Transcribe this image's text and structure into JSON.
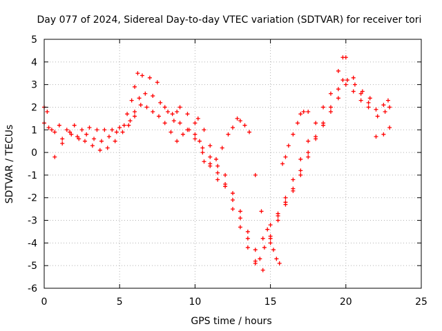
{
  "chart_data": {
    "type": "scatter",
    "title": "Day 077 of 2024, Sidereal Day-to-day VTEC variation (SDTVAR) for receiver tori",
    "xlabel": "GPS time / hours",
    "ylabel": "SDTVAR / TECUs",
    "xlim": [
      0,
      25
    ],
    "ylim": [
      -6,
      5
    ],
    "xticks": [
      0,
      5,
      10,
      15,
      20,
      25
    ],
    "yticks": [
      -6,
      -5,
      -4,
      -3,
      -2,
      -1,
      0,
      1,
      2,
      3,
      4,
      5
    ],
    "grid": true,
    "legend": "none",
    "marker": "plus",
    "color": "#ff0000",
    "series": [
      {
        "x": [
          0.0,
          0.2,
          0.5,
          1.0,
          1.5,
          2.0,
          2.5,
          3.0,
          3.5,
          4.0,
          4.5,
          5.0,
          5.5,
          5.8,
          6.0,
          6.2,
          6.5,
          7.0,
          7.5,
          8.0,
          8.5,
          8.8,
          9.0,
          9.5,
          10.0,
          10.3,
          10.6,
          11.0,
          11.5,
          12.0,
          12.5,
          13.0,
          13.5,
          14.0,
          14.3,
          14.6,
          15.0,
          15.5,
          16.0,
          16.5,
          17.0,
          17.5,
          18.0,
          18.5,
          19.0,
          19.5,
          19.8,
          20.0,
          20.5,
          21.0,
          21.5,
          22.0,
          22.5,
          22.8
        ],
        "y": [
          2.0,
          1.8,
          1.0,
          1.2,
          1.0,
          1.2,
          1.0,
          1.1,
          1.0,
          1.0,
          1.0,
          1.1,
          1.7,
          2.3,
          2.9,
          3.5,
          3.4,
          3.3,
          3.1,
          2.0,
          1.7,
          1.8,
          2.0,
          1.7,
          1.3,
          0.5,
          -0.4,
          -0.6,
          -1.2,
          -1.5,
          -2.5,
          -3.3,
          -4.2,
          -4.8,
          -4.7,
          -4.2,
          -3.8,
          -2.8,
          -2.0,
          -1.2,
          -0.3,
          0.5,
          1.3,
          2.0,
          2.6,
          3.6,
          4.2,
          4.2,
          3.3,
          2.6,
          2.2,
          1.9,
          2.1,
          2.3
        ]
      },
      {
        "x": [
          0.0,
          0.3,
          0.7,
          1.2,
          1.8,
          2.3,
          2.8,
          3.3,
          3.8,
          4.3,
          4.8,
          5.3,
          5.7,
          6.0,
          6.3,
          6.7,
          7.2,
          7.7,
          8.2,
          8.6,
          9.0,
          9.5,
          10.0,
          10.5,
          11.0,
          11.5,
          12.0,
          12.5,
          13.0,
          13.5,
          14.0,
          14.5,
          15.0,
          15.5,
          16.0,
          16.5,
          17.0,
          17.5,
          18.0,
          18.5,
          19.0,
          19.5,
          19.8,
          20.1,
          20.6,
          21.1,
          21.6,
          22.1,
          22.6,
          22.9
        ],
        "y": [
          1.3,
          1.1,
          0.9,
          0.6,
          0.8,
          0.6,
          0.8,
          0.6,
          0.5,
          0.7,
          0.9,
          1.2,
          1.4,
          1.8,
          2.4,
          2.6,
          2.5,
          2.2,
          1.8,
          1.4,
          1.3,
          1.0,
          0.8,
          0.2,
          -0.2,
          -0.6,
          -1.0,
          -1.8,
          -2.6,
          -3.5,
          -4.3,
          -3.8,
          -3.2,
          -2.7,
          -2.2,
          -1.7,
          -1.0,
          -0.2,
          0.6,
          1.2,
          2.0,
          2.8,
          3.2,
          3.2,
          3.0,
          2.7,
          2.4,
          1.6,
          1.8,
          2.0
        ]
      },
      {
        "x": [
          0.7,
          1.2,
          1.7,
          2.2,
          2.7,
          3.2,
          3.7,
          4.2,
          4.7,
          5.2,
          5.6,
          6.0,
          6.4,
          6.8,
          7.2,
          7.6,
          8.0,
          8.4,
          8.8,
          9.2,
          9.6,
          10.0,
          10.5,
          11.0,
          11.5,
          12.0,
          12.5,
          13.0,
          13.5,
          14.0,
          14.5,
          15.0,
          15.5,
          16.0,
          16.5,
          17.0,
          17.5,
          18.0,
          18.5,
          19.0,
          19.5,
          20.0,
          20.5,
          21.0,
          21.5,
          22.0,
          22.5,
          22.9
        ],
        "y": [
          -0.2,
          0.4,
          0.9,
          0.7,
          0.5,
          0.3,
          0.1,
          0.2,
          0.5,
          0.9,
          1.2,
          1.6,
          2.1,
          2.0,
          1.8,
          1.6,
          1.3,
          0.9,
          0.5,
          0.8,
          1.0,
          0.6,
          0.0,
          -0.5,
          -0.9,
          -1.4,
          -2.1,
          -2.9,
          -3.8,
          -4.9,
          -5.2,
          -4.0,
          -3.0,
          -2.3,
          -1.6,
          -0.8,
          0.0,
          0.7,
          1.3,
          1.8,
          2.4,
          3.0,
          2.7,
          2.3,
          2.0,
          0.7,
          0.8,
          1.1
        ]
      },
      {
        "x": [
          10.2,
          10.6,
          11.0,
          11.4,
          11.8,
          12.2,
          12.5,
          12.8,
          13.0,
          13.3,
          13.6,
          14.0,
          14.4,
          14.8,
          15.0,
          15.2,
          15.4,
          15.6,
          15.8,
          16.0,
          16.2,
          16.5,
          16.8,
          17.0,
          17.2,
          17.5
        ],
        "y": [
          1.5,
          1.0,
          0.3,
          -0.3,
          0.2,
          0.8,
          1.1,
          1.5,
          1.4,
          1.2,
          0.9,
          -1.0,
          -2.6,
          -3.4,
          -3.7,
          -4.3,
          -4.7,
          -4.9,
          -0.5,
          -0.2,
          0.3,
          0.8,
          1.3,
          1.7,
          1.8,
          1.8
        ]
      }
    ]
  }
}
